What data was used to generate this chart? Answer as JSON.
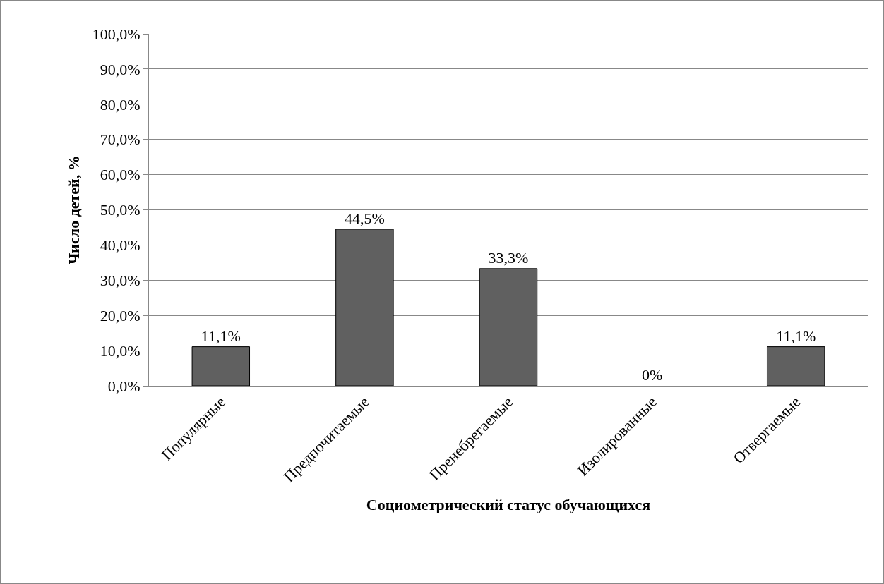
{
  "chart_data": {
    "type": "bar",
    "xlabel": "Социометрический статус обучающихся",
    "ylabel": "Число детей, %",
    "categories": [
      "Популярные",
      "Предпочитаемые",
      "Пренебрегаемые",
      "Изолированные",
      "Отвергаемые"
    ],
    "values": [
      11.1,
      44.5,
      33.3,
      0,
      11.1
    ],
    "value_labels": [
      "11,1%",
      "44,5%",
      "33,3%",
      "0%",
      "11,1%"
    ],
    "color": "#606060",
    "ylim": [
      0,
      100
    ],
    "yticks": [
      {
        "value": 0,
        "label": "0,0%"
      },
      {
        "value": 10,
        "label": "10,0%"
      },
      {
        "value": 20,
        "label": "20,0%"
      },
      {
        "value": 30,
        "label": "30,0%"
      },
      {
        "value": 40,
        "label": "40,0%"
      },
      {
        "value": 50,
        "label": "50,0%"
      },
      {
        "value": 60,
        "label": "60,0%"
      },
      {
        "value": 70,
        "label": "70,0%"
      },
      {
        "value": 80,
        "label": "80,0%"
      },
      {
        "value": 90,
        "label": "90,0%"
      },
      {
        "value": 100,
        "label": "100,0%"
      }
    ],
    "grid": "y"
  }
}
